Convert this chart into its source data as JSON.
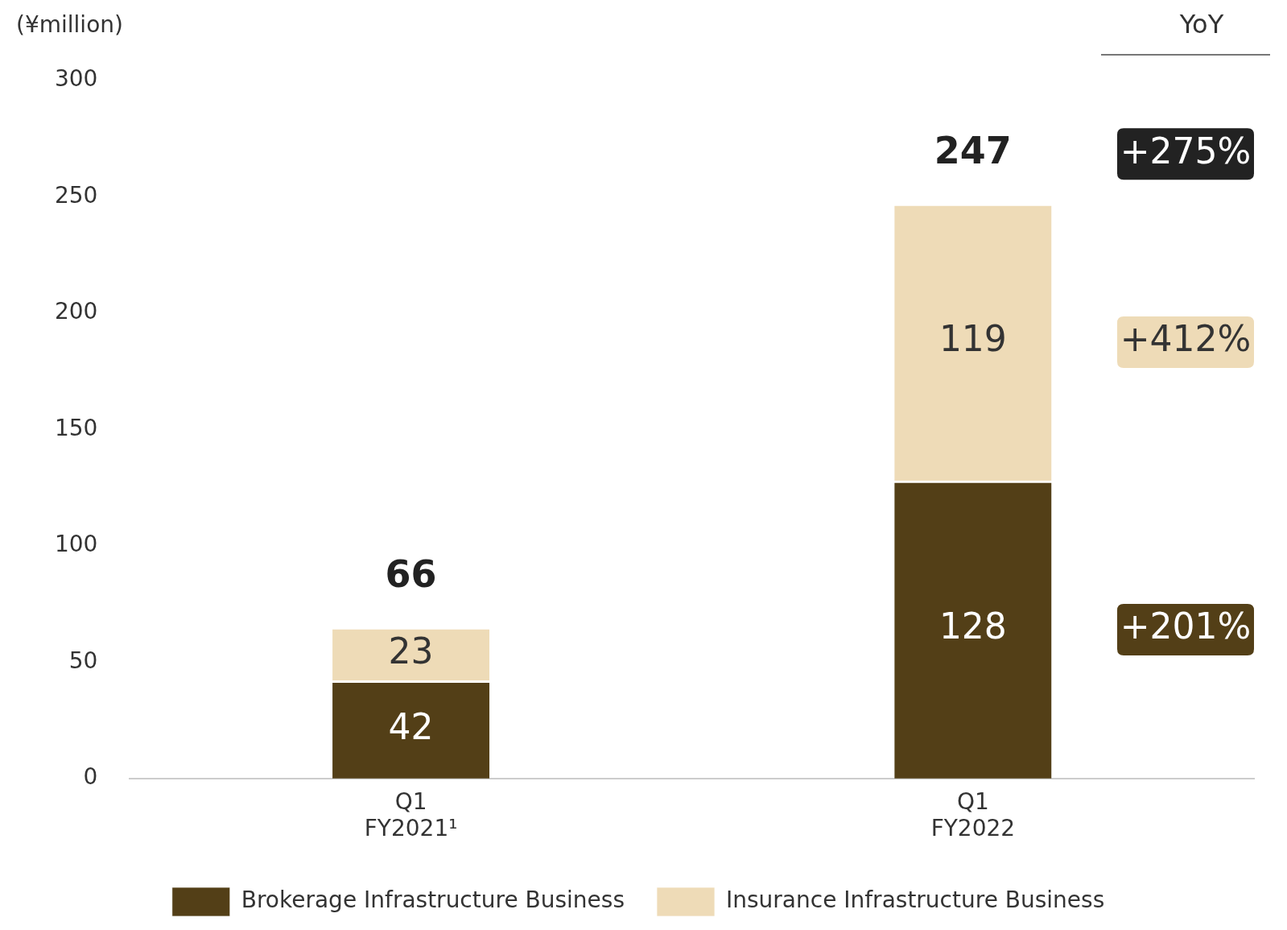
{
  "chart_data": {
    "type": "bar",
    "stacked": true,
    "ylabel": "(¥million)",
    "categories": [
      "Q1\nFY2021¹",
      "Q1\nFY2022"
    ],
    "series": [
      {
        "name": "Brokerage Infrastructure Business",
        "color": "#533f17",
        "values": [
          42,
          128
        ]
      },
      {
        "name": "Insurance Infrastructure Business",
        "color": "#eedbb7",
        "values": [
          23,
          119
        ]
      }
    ],
    "ylim": [
      0,
      300
    ],
    "yticks": [
      0,
      50,
      100,
      150,
      200,
      250,
      300
    ],
    "grid": false,
    "legend": "bottom",
    "data_labels": true,
    "totals": [
      "66",
      "247"
    ],
    "annotations": [
      "YoY",
      "+275%",
      "+412%",
      "+201%"
    ]
  }
}
